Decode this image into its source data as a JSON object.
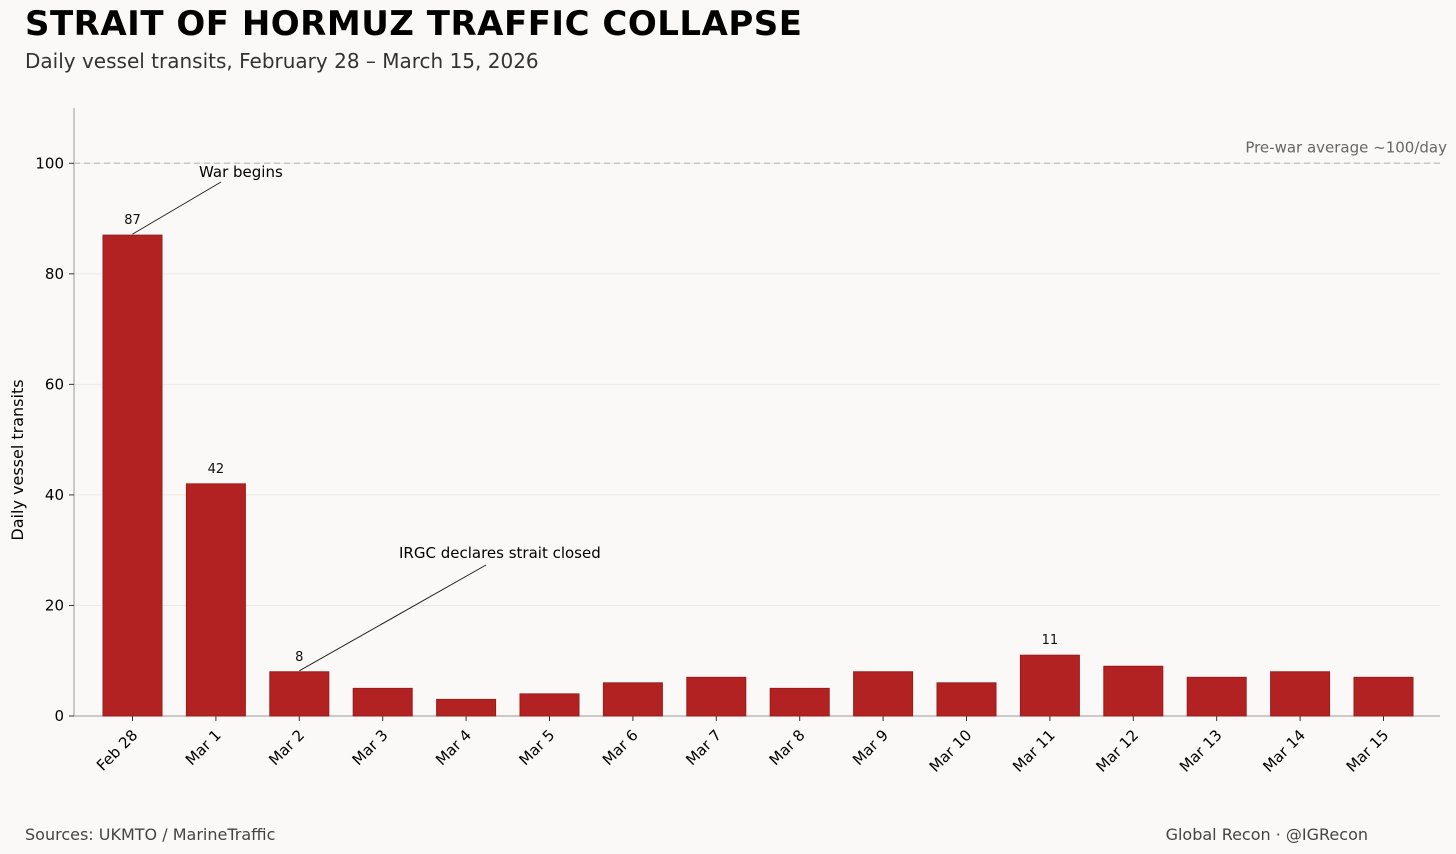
{
  "header": {
    "title": "STRAIT OF HORMUZ TRAFFIC COLLAPSE",
    "subtitle": "Daily vessel transits, February 28 – March 15, 2026"
  },
  "footer": {
    "sources": "Sources: UKMTO / MarineTraffic",
    "credit": "Global Recon · @IGRecon"
  },
  "chart_data": {
    "type": "bar",
    "title": "STRAIT OF HORMUZ TRAFFIC COLLAPSE",
    "subtitle": "Daily vessel transits, February 28 – March 15, 2026",
    "xlabel": "",
    "ylabel": "Daily vessel transits",
    "ylim": [
      0,
      110
    ],
    "yticks": [
      0,
      20,
      40,
      60,
      80,
      100
    ],
    "grid": true,
    "bar_color": "#b22222",
    "categories": [
      "Feb 28",
      "Mar 1",
      "Mar 2",
      "Mar 3",
      "Mar 4",
      "Mar 5",
      "Mar 6",
      "Mar 7",
      "Mar 8",
      "Mar 9",
      "Mar 10",
      "Mar 11",
      "Mar 12",
      "Mar 13",
      "Mar 14",
      "Mar 15"
    ],
    "values": [
      87,
      42,
      8,
      5,
      3,
      4,
      6,
      7,
      5,
      8,
      6,
      11,
      9,
      7,
      8,
      7
    ],
    "data_labels": [
      {
        "category": "Feb 28",
        "text": "87"
      },
      {
        "category": "Mar 1",
        "text": "42"
      },
      {
        "category": "Mar 2",
        "text": "8"
      },
      {
        "category": "Mar 11",
        "text": "11"
      }
    ],
    "reference_line": {
      "value": 100,
      "label": "Pre-war average ~100/day",
      "style": "dashed",
      "color": "#c8c8c8"
    },
    "annotations": [
      {
        "text": "War begins",
        "category": "Feb 28",
        "value": 87
      },
      {
        "text": "IRGC declares strait closed",
        "category": "Mar 2",
        "value": 8
      }
    ]
  }
}
